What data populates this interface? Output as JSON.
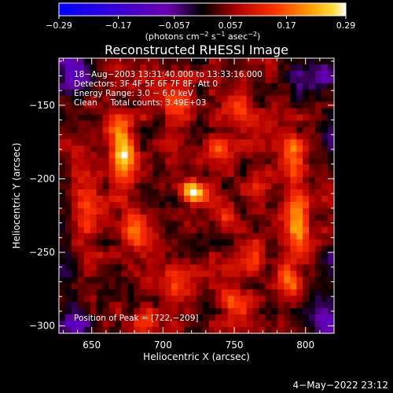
{
  "chart_data": {
    "type": "heatmap",
    "title": "Reconstructed RHESSI Image",
    "xlabel": "Heliocentric X (arcsec)",
    "ylabel": "Heliocentric Y (arcsec)",
    "xlim": [
      627,
      820
    ],
    "ylim": [
      -305,
      -118
    ],
    "x_ticks": [
      650,
      700,
      750,
      800
    ],
    "y_ticks": [
      -150,
      -200,
      -250,
      -300
    ],
    "x_tick_labels": [
      "650",
      "700",
      "750",
      "800"
    ],
    "y_tick_labels": [
      "−150",
      "−200",
      "−250",
      "−300"
    ],
    "colorbar": {
      "min": -0.29,
      "max": 0.29,
      "tick_values": [
        -0.29,
        -0.17,
        -0.057,
        0.057,
        0.17,
        0.29
      ],
      "tick_labels": [
        "−0.29",
        "−0.17",
        "−0.057",
        "0.057",
        "0.17",
        "0.29"
      ],
      "unit_label_parts": [
        "(photons cm",
        "−2",
        " s",
        "−1",
        " asec",
        "−2",
        ")"
      ]
    },
    "info_lines": [
      "18−Aug−2003 13:31:40.000 to 13:33:16.000",
      "Detectors: 3F 4F 5F 6F 7F 8F, Att 0",
      "Energy Range: 3.0 − 6.0 keV",
      "Clean     Total counts: 3.49E+03"
    ],
    "peak_label": "Position of Peak = [722,−209]",
    "peak": {
      "x": 722,
      "y": -209
    },
    "hotspots": [
      {
        "x": 722,
        "y": -209,
        "value": 0.29,
        "sx": 6,
        "sy": 5
      },
      {
        "x": 672,
        "y": -185,
        "value": 0.19,
        "sx": 5,
        "sy": 14
      },
      {
        "x": 668,
        "y": -165,
        "value": 0.14,
        "sx": 6,
        "sy": 8
      },
      {
        "x": 682,
        "y": -232,
        "value": 0.13,
        "sx": 7,
        "sy": 9
      },
      {
        "x": 646,
        "y": -220,
        "value": 0.1,
        "sx": 6,
        "sy": 18
      },
      {
        "x": 795,
        "y": -230,
        "value": 0.18,
        "sx": 6,
        "sy": 14
      },
      {
        "x": 790,
        "y": -185,
        "value": 0.14,
        "sx": 6,
        "sy": 12
      },
      {
        "x": 788,
        "y": -270,
        "value": 0.12,
        "sx": 6,
        "sy": 9
      },
      {
        "x": 760,
        "y": -252,
        "value": 0.1,
        "sx": 8,
        "sy": 7
      },
      {
        "x": 740,
        "y": -180,
        "value": 0.11,
        "sx": 7,
        "sy": 7
      },
      {
        "x": 708,
        "y": -148,
        "value": 0.12,
        "sx": 8,
        "sy": 7
      },
      {
        "x": 755,
        "y": -155,
        "value": 0.1,
        "sx": 7,
        "sy": 7
      },
      {
        "x": 712,
        "y": -272,
        "value": 0.12,
        "sx": 9,
        "sy": 8
      },
      {
        "x": 752,
        "y": -285,
        "value": 0.12,
        "sx": 8,
        "sy": 7
      },
      {
        "x": 690,
        "y": -296,
        "value": 0.08,
        "sx": 8,
        "sy": 6
      },
      {
        "x": 742,
        "y": -225,
        "value": 0.08,
        "sx": 6,
        "sy": 6
      },
      {
        "x": 766,
        "y": -205,
        "value": 0.08,
        "sx": 5,
        "sy": 8
      }
    ],
    "cold_spots": [
      {
        "x": 640,
        "y": -128,
        "value": -0.15,
        "sx": 10,
        "sy": 10
      },
      {
        "x": 810,
        "y": -130,
        "value": -0.12,
        "sx": 12,
        "sy": 10
      },
      {
        "x": 638,
        "y": -298,
        "value": -0.12,
        "sx": 10,
        "sy": 9
      },
      {
        "x": 815,
        "y": -295,
        "value": -0.14,
        "sx": 11,
        "sy": 10
      },
      {
        "x": 630,
        "y": -262,
        "value": -0.08,
        "sx": 6,
        "sy": 14
      },
      {
        "x": 820,
        "y": -175,
        "value": -0.09,
        "sx": 5,
        "sy": 14
      },
      {
        "x": 820,
        "y": -255,
        "value": -0.07,
        "sx": 5,
        "sy": 10
      }
    ],
    "baseline": 0.045,
    "noise_amplitude": 0.045
  },
  "footer": {
    "timestamp": "4−May−2022 23:12"
  }
}
